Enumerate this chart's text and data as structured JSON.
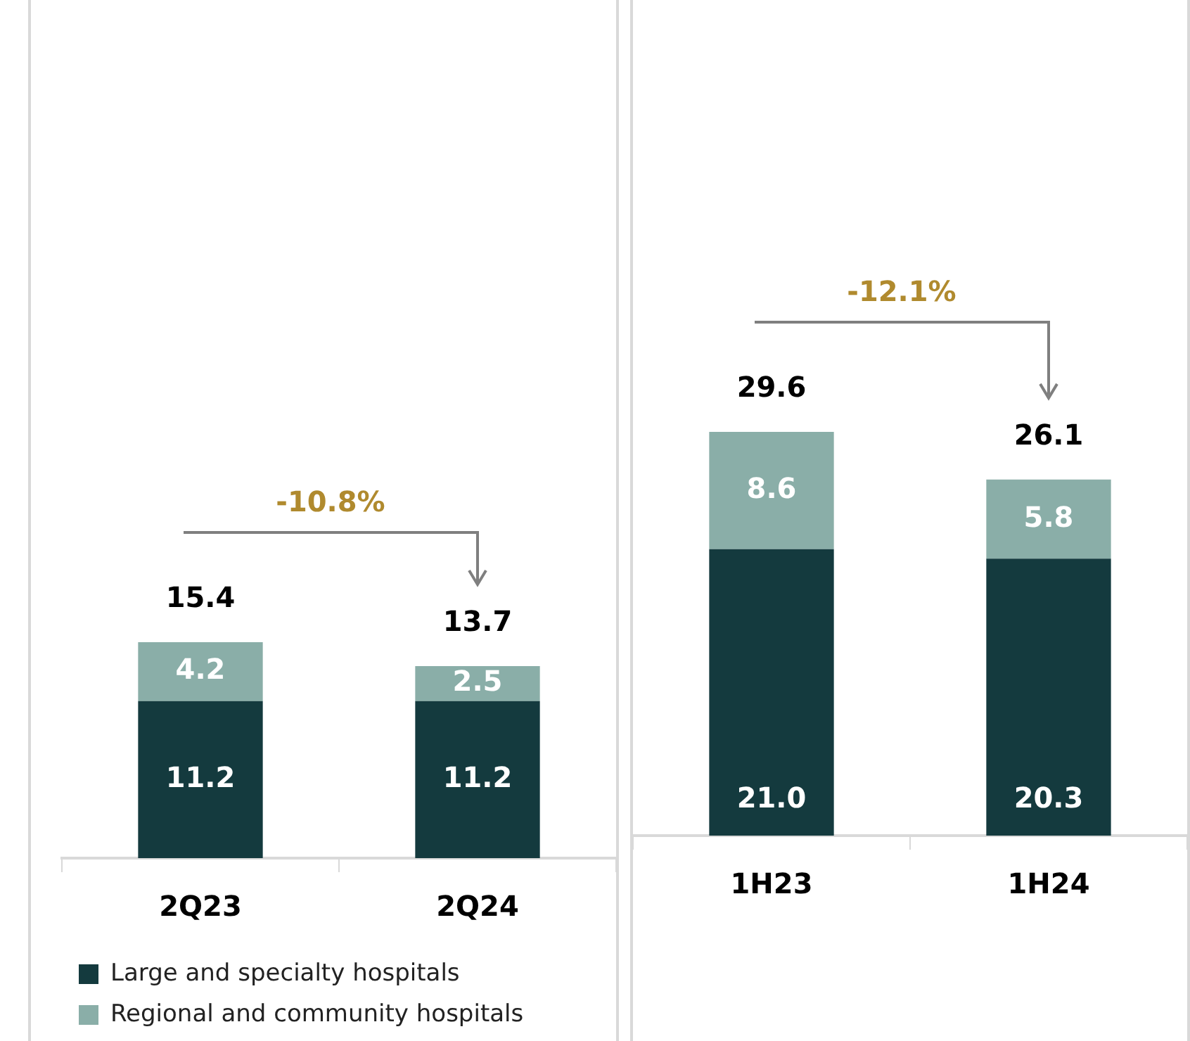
{
  "chart_data": [
    {
      "type": "bar",
      "stacked": true,
      "categories": [
        "2Q23",
        "2Q24"
      ],
      "series": [
        {
          "name": "Large and specialty hospitals",
          "color": "#143a3e",
          "values": [
            11.2,
            11.2
          ],
          "value_labels": [
            "11.2",
            "11.2"
          ]
        },
        {
          "name": "Regional and community hospitals",
          "color": "#8aaea8",
          "values": [
            4.2,
            2.5
          ],
          "value_labels": [
            "4.2",
            "2.5"
          ]
        }
      ],
      "totals": [
        "15.4",
        "13.7"
      ],
      "annotations": [
        "-10.8%"
      ],
      "legend": "bottom"
    },
    {
      "type": "bar",
      "stacked": true,
      "categories": [
        "1H23",
        "1H24"
      ],
      "series": [
        {
          "color": "#143a3e",
          "values": [
            21.0,
            20.3
          ],
          "value_labels": [
            "21.0",
            "20.3"
          ]
        },
        {
          "color": "#8aaea8",
          "values": [
            8.6,
            5.8
          ],
          "value_labels": [
            "8.6",
            "5.8"
          ]
        }
      ],
      "totals": [
        "29.6",
        "26.1"
      ],
      "annotations": [
        "-12.1%"
      ],
      "legend": false
    }
  ]
}
